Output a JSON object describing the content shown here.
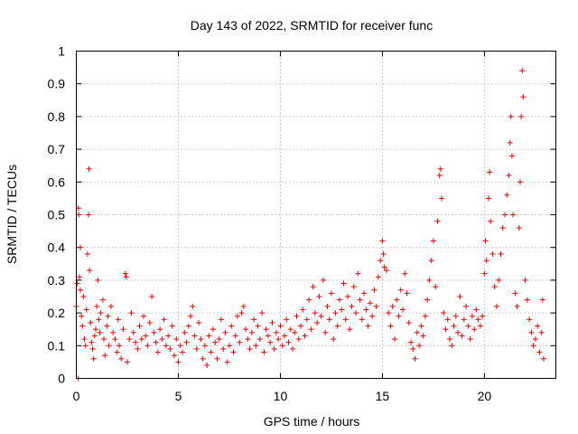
{
  "chart_data": {
    "type": "scatter",
    "title": "Day 143 of 2022, SRMTID for receiver func",
    "xlabel": "GPS time / hours",
    "ylabel": "SRMTID / TECUs",
    "xlim": [
      0,
      23.5
    ],
    "ylim": [
      0,
      1
    ],
    "xticks": [
      0,
      5,
      10,
      15,
      20
    ],
    "xtick_labels": [
      "0",
      "5",
      "10",
      "15",
      "20"
    ],
    "yticks": [
      0,
      0.1,
      0.2,
      0.3,
      0.4,
      0.5,
      0.6,
      0.7,
      0.8,
      0.9,
      1
    ],
    "ytick_labels": [
      "0",
      "0.1",
      "0.2",
      "0.3",
      "0.4",
      "0.5",
      "0.6",
      "0.7",
      "0.8",
      "0.9",
      "1"
    ],
    "grid": true,
    "marker": "+",
    "color": "#ee0000",
    "series": [
      {
        "name": "SRMTID",
        "points": [
          [
            0.0,
            0.22
          ],
          [
            0.05,
            0.29
          ],
          [
            0.1,
            0.0
          ],
          [
            0.1,
            0.52
          ],
          [
            0.12,
            0.5
          ],
          [
            0.15,
            0.31
          ],
          [
            0.2,
            0.27
          ],
          [
            0.2,
            0.4
          ],
          [
            0.25,
            0.19
          ],
          [
            0.3,
            0.16
          ],
          [
            0.35,
            0.25
          ],
          [
            0.4,
            0.12
          ],
          [
            0.45,
            0.1
          ],
          [
            0.5,
            0.21
          ],
          [
            0.55,
            0.38
          ],
          [
            0.6,
            0.5
          ],
          [
            0.62,
            0.64
          ],
          [
            0.65,
            0.33
          ],
          [
            0.7,
            0.17
          ],
          [
            0.75,
            0.11
          ],
          [
            0.8,
            0.09
          ],
          [
            0.85,
            0.06
          ],
          [
            0.9,
            0.13
          ],
          [
            0.95,
            0.15
          ],
          [
            1.0,
            0.22
          ],
          [
            1.05,
            0.3
          ],
          [
            1.1,
            0.18
          ],
          [
            1.15,
            0.14
          ],
          [
            1.2,
            0.2
          ],
          [
            1.3,
            0.24
          ],
          [
            1.35,
            0.12
          ],
          [
            1.4,
            0.07
          ],
          [
            1.5,
            0.16
          ],
          [
            1.55,
            0.19
          ],
          [
            1.6,
            0.1
          ],
          [
            1.7,
            0.22
          ],
          [
            1.8,
            0.14
          ],
          [
            1.9,
            0.12
          ],
          [
            2.0,
            0.08
          ],
          [
            2.05,
            0.18
          ],
          [
            2.1,
            0.1
          ],
          [
            2.2,
            0.06
          ],
          [
            2.3,
            0.15
          ],
          [
            2.4,
            0.32
          ],
          [
            2.45,
            0.31
          ],
          [
            2.5,
            0.05
          ],
          [
            2.6,
            0.12
          ],
          [
            2.7,
            0.2
          ],
          [
            2.8,
            0.14
          ],
          [
            2.9,
            0.11
          ],
          [
            3.0,
            0.09
          ],
          [
            3.1,
            0.16
          ],
          [
            3.2,
            0.12
          ],
          [
            3.3,
            0.19
          ],
          [
            3.4,
            0.13
          ],
          [
            3.5,
            0.1
          ],
          [
            3.6,
            0.17
          ],
          [
            3.7,
            0.25
          ],
          [
            3.8,
            0.14
          ],
          [
            3.9,
            0.11
          ],
          [
            4.0,
            0.08
          ],
          [
            4.1,
            0.15
          ],
          [
            4.2,
            0.12
          ],
          [
            4.3,
            0.18
          ],
          [
            4.4,
            0.1
          ],
          [
            4.5,
            0.13
          ],
          [
            4.6,
            0.09
          ],
          [
            4.7,
            0.16
          ],
          [
            4.8,
            0.07
          ],
          [
            4.9,
            0.12
          ],
          [
            5.0,
            0.05
          ],
          [
            5.1,
            0.1
          ],
          [
            5.2,
            0.08
          ],
          [
            5.3,
            0.14
          ],
          [
            5.4,
            0.11
          ],
          [
            5.5,
            0.16
          ],
          [
            5.6,
            0.19
          ],
          [
            5.7,
            0.22
          ],
          [
            5.8,
            0.13
          ],
          [
            5.9,
            0.09
          ],
          [
            6.0,
            0.17
          ],
          [
            6.1,
            0.12
          ],
          [
            6.2,
            0.06
          ],
          [
            6.3,
            0.1
          ],
          [
            6.4,
            0.04
          ],
          [
            6.5,
            0.13
          ],
          [
            6.6,
            0.08
          ],
          [
            6.7,
            0.15
          ],
          [
            6.8,
            0.11
          ],
          [
            6.9,
            0.06
          ],
          [
            7.0,
            0.12
          ],
          [
            7.1,
            0.18
          ],
          [
            7.2,
            0.09
          ],
          [
            7.3,
            0.14
          ],
          [
            7.4,
            0.05
          ],
          [
            7.5,
            0.1
          ],
          [
            7.6,
            0.16
          ],
          [
            7.7,
            0.08
          ],
          [
            7.8,
            0.13
          ],
          [
            7.9,
            0.19
          ],
          [
            8.0,
            0.11
          ],
          [
            8.1,
            0.2
          ],
          [
            8.2,
            0.22
          ],
          [
            8.3,
            0.15
          ],
          [
            8.4,
            0.12
          ],
          [
            8.5,
            0.09
          ],
          [
            8.6,
            0.14
          ],
          [
            8.7,
            0.18
          ],
          [
            8.8,
            0.1
          ],
          [
            8.9,
            0.16
          ],
          [
            9.0,
            0.12
          ],
          [
            9.1,
            0.2
          ],
          [
            9.2,
            0.08
          ],
          [
            9.3,
            0.15
          ],
          [
            9.4,
            0.13
          ],
          [
            9.5,
            0.11
          ],
          [
            9.6,
            0.17
          ],
          [
            9.7,
            0.09
          ],
          [
            9.8,
            0.14
          ],
          [
            9.9,
            0.12
          ],
          [
            10.0,
            0.16
          ],
          [
            10.1,
            0.1
          ],
          [
            10.2,
            0.13
          ],
          [
            10.3,
            0.18
          ],
          [
            10.4,
            0.11
          ],
          [
            10.5,
            0.15
          ],
          [
            10.6,
            0.09
          ],
          [
            10.7,
            0.14
          ],
          [
            10.8,
            0.19
          ],
          [
            10.9,
            0.12
          ],
          [
            11.0,
            0.16
          ],
          [
            11.1,
            0.21
          ],
          [
            11.2,
            0.13
          ],
          [
            11.3,
            0.18
          ],
          [
            11.4,
            0.24
          ],
          [
            11.5,
            0.15
          ],
          [
            11.6,
            0.28
          ],
          [
            11.7,
            0.2
          ],
          [
            11.8,
            0.17
          ],
          [
            11.9,
            0.25
          ],
          [
            12.0,
            0.19
          ],
          [
            12.1,
            0.3
          ],
          [
            12.2,
            0.14
          ],
          [
            12.3,
            0.22
          ],
          [
            12.4,
            0.18
          ],
          [
            12.5,
            0.26
          ],
          [
            12.6,
            0.12
          ],
          [
            12.7,
            0.2
          ],
          [
            12.8,
            0.16
          ],
          [
            12.9,
            0.24
          ],
          [
            13.0,
            0.21
          ],
          [
            13.1,
            0.29
          ],
          [
            13.2,
            0.18
          ],
          [
            13.3,
            0.25
          ],
          [
            13.4,
            0.15
          ],
          [
            13.5,
            0.22
          ],
          [
            13.6,
            0.28
          ],
          [
            13.7,
            0.2
          ],
          [
            13.8,
            0.32
          ],
          [
            13.9,
            0.24
          ],
          [
            14.0,
            0.18
          ],
          [
            14.1,
            0.26
          ],
          [
            14.2,
            0.21
          ],
          [
            14.3,
            0.16
          ],
          [
            14.4,
            0.23
          ],
          [
            14.5,
            0.19
          ],
          [
            14.6,
            0.27
          ],
          [
            14.7,
            0.22
          ],
          [
            14.8,
            0.31
          ],
          [
            14.9,
            0.36
          ],
          [
            15.0,
            0.42
          ],
          [
            15.05,
            0.38
          ],
          [
            15.1,
            0.34
          ],
          [
            15.2,
            0.33
          ],
          [
            15.3,
            0.2
          ],
          [
            15.4,
            0.16
          ],
          [
            15.5,
            0.22
          ],
          [
            15.6,
            0.12
          ],
          [
            15.7,
            0.24
          ],
          [
            15.8,
            0.19
          ],
          [
            15.9,
            0.27
          ],
          [
            16.0,
            0.21
          ],
          [
            16.1,
            0.32
          ],
          [
            16.2,
            0.26
          ],
          [
            16.3,
            0.17
          ],
          [
            16.4,
            0.11
          ],
          [
            16.5,
            0.09
          ],
          [
            16.6,
            0.06
          ],
          [
            16.7,
            0.14
          ],
          [
            16.8,
            0.1
          ],
          [
            16.9,
            0.16
          ],
          [
            17.0,
            0.13
          ],
          [
            17.1,
            0.19
          ],
          [
            17.2,
            0.24
          ],
          [
            17.3,
            0.3
          ],
          [
            17.4,
            0.36
          ],
          [
            17.5,
            0.42
          ],
          [
            17.6,
            0.28
          ],
          [
            17.7,
            0.48
          ],
          [
            17.8,
            0.62
          ],
          [
            17.85,
            0.64
          ],
          [
            17.9,
            0.55
          ],
          [
            18.0,
            0.2
          ],
          [
            18.1,
            0.15
          ],
          [
            18.2,
            0.18
          ],
          [
            18.3,
            0.12
          ],
          [
            18.4,
            0.1
          ],
          [
            18.5,
            0.16
          ],
          [
            18.6,
            0.19
          ],
          [
            18.7,
            0.14
          ],
          [
            18.8,
            0.25
          ],
          [
            18.9,
            0.13
          ],
          [
            19.0,
            0.18
          ],
          [
            19.1,
            0.22
          ],
          [
            19.2,
            0.16
          ],
          [
            19.3,
            0.12
          ],
          [
            19.4,
            0.19
          ],
          [
            19.5,
            0.15
          ],
          [
            19.6,
            0.21
          ],
          [
            19.7,
            0.18
          ],
          [
            19.8,
            0.16
          ],
          [
            19.9,
            0.19
          ],
          [
            20.0,
            0.32
          ],
          [
            20.05,
            0.42
          ],
          [
            20.1,
            0.36
          ],
          [
            20.2,
            0.55
          ],
          [
            20.25,
            0.63
          ],
          [
            20.3,
            0.48
          ],
          [
            20.4,
            0.38
          ],
          [
            20.5,
            0.28
          ],
          [
            20.6,
            0.22
          ],
          [
            20.7,
            0.3
          ],
          [
            20.8,
            0.38
          ],
          [
            20.9,
            0.46
          ],
          [
            21.0,
            0.5
          ],
          [
            21.1,
            0.56
          ],
          [
            21.2,
            0.62
          ],
          [
            21.25,
            0.72
          ],
          [
            21.3,
            0.8
          ],
          [
            21.35,
            0.68
          ],
          [
            21.4,
            0.5
          ],
          [
            21.5,
            0.26
          ],
          [
            21.6,
            0.22
          ],
          [
            21.7,
            0.46
          ],
          [
            21.75,
            0.6
          ],
          [
            21.8,
            0.8
          ],
          [
            21.85,
            0.94
          ],
          [
            21.9,
            0.86
          ],
          [
            22.0,
            0.3
          ],
          [
            22.1,
            0.24
          ],
          [
            22.2,
            0.18
          ],
          [
            22.3,
            0.14
          ],
          [
            22.4,
            0.1
          ],
          [
            22.5,
            0.12
          ],
          [
            22.6,
            0.16
          ],
          [
            22.7,
            0.08
          ],
          [
            22.8,
            0.14
          ],
          [
            22.85,
            0.24
          ],
          [
            22.9,
            0.06
          ]
        ]
      }
    ]
  }
}
